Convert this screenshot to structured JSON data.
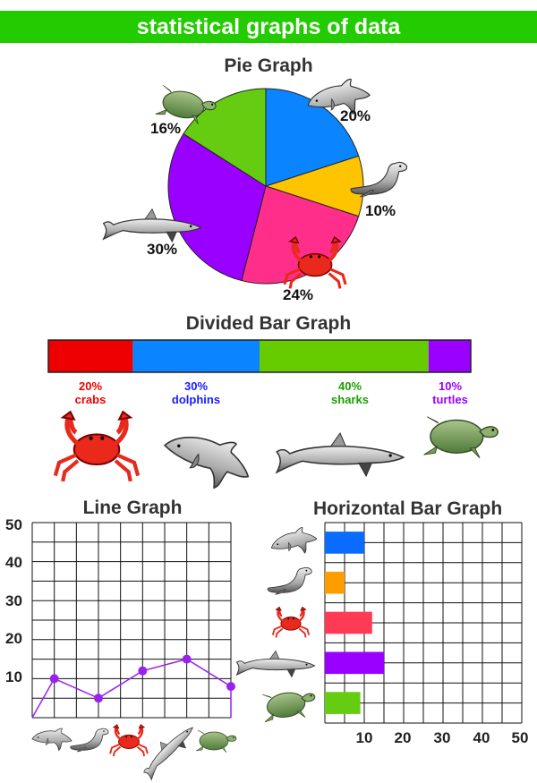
{
  "banner": "statistical graphs of data",
  "colors": {
    "banner": "#22cc00",
    "dolphins": "#0a84ff",
    "seals": "#ffc400",
    "crabs": "#ff2e8a",
    "sharks": "#9900ff",
    "turtles": "#66cc11",
    "crab_red": "#ee0000",
    "line": "#9a22ee"
  },
  "chart_data": [
    {
      "type": "pie",
      "title": "Pie Graph",
      "slices": [
        {
          "icon": "dolphin-icon",
          "value": 20,
          "label": "20%",
          "color": "#0a84ff"
        },
        {
          "icon": "seal-icon",
          "value": 10,
          "label": "10%",
          "color": "#ffc400"
        },
        {
          "icon": "crab-icon",
          "value": 24,
          "label": "24%",
          "color": "#ff2e8a"
        },
        {
          "icon": "shark-icon",
          "value": 30,
          "label": "30%",
          "color": "#9900ff"
        },
        {
          "icon": "turtle-icon",
          "value": 16,
          "label": "16%",
          "color": "#66cc11"
        }
      ]
    },
    {
      "type": "bar",
      "stacked": true,
      "title": "Divided Bar Graph",
      "segments": [
        {
          "pct_label": "20%",
          "name": "crabs",
          "value": 20,
          "color": "#ee0000",
          "icon": "crab-icon"
        },
        {
          "pct_label": "30%",
          "name": "dolphins",
          "value": 30,
          "color": "#0a84ff",
          "icon": "dolphin-icon"
        },
        {
          "pct_label": "40%",
          "name": "sharks",
          "value": 40,
          "color": "#66cc00",
          "icon": "shark-icon"
        },
        {
          "pct_label": "10%",
          "name": "turtles",
          "value": 10,
          "color": "#9900ff",
          "icon": "turtle-icon"
        }
      ],
      "label_colors": [
        "#ee0000",
        "#1a1aff",
        "#1aa000",
        "#9900ff"
      ]
    },
    {
      "type": "line",
      "title": "Line Graph",
      "y_ticks": [
        "10",
        "20",
        "30",
        "40",
        "50"
      ],
      "ylim": [
        0,
        50
      ],
      "x_icons": [
        "dolphin-icon",
        "seal-icon",
        "crab-icon",
        "shark-icon",
        "turtle-icon"
      ],
      "points": [
        {
          "icon": "dolphin-icon",
          "y": 10
        },
        {
          "icon": "seal-icon",
          "y": 5
        },
        {
          "icon": "crab-icon",
          "y": 12
        },
        {
          "icon": "shark-icon",
          "y": 15
        },
        {
          "icon": "turtle-icon",
          "y": 8
        }
      ],
      "line_start_y": 0,
      "line_end_y": 0,
      "grid": true
    },
    {
      "type": "bar",
      "orientation": "horizontal",
      "title": "Horizontal Bar Graph",
      "x_ticks": [
        "10",
        "20",
        "30",
        "40",
        "50"
      ],
      "xlim": [
        0,
        50
      ],
      "bars": [
        {
          "icon": "dolphin-icon",
          "value": 10,
          "color": "#0a6cff"
        },
        {
          "icon": "seal-icon",
          "value": 5,
          "color": "#ff9d00"
        },
        {
          "icon": "crab-icon",
          "value": 12,
          "color": "#ff3a55"
        },
        {
          "icon": "shark-icon",
          "value": 15,
          "color": "#9900ff"
        },
        {
          "icon": "turtle-icon",
          "value": 9,
          "color": "#66cc11"
        }
      ],
      "grid": true
    }
  ]
}
